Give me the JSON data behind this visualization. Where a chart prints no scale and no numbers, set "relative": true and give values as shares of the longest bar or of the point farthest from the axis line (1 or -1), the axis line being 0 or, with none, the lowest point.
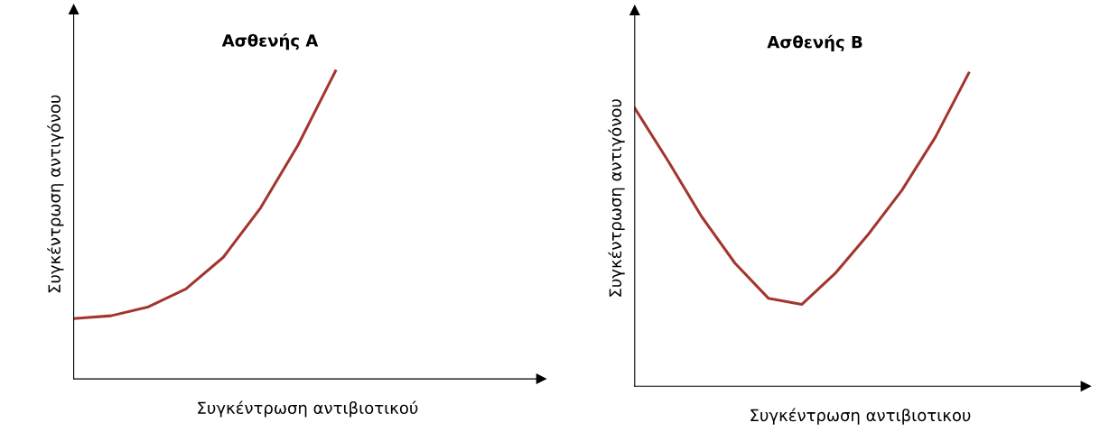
{
  "chart_data": [
    {
      "type": "line",
      "relative": true,
      "title": "Ασθενής Α",
      "xlabel": "Συγκέντρωση αντιβιοτικού",
      "ylabel": "Συγκέντρωση αντιγόνου",
      "grid": false,
      "legend": false,
      "marker": "none",
      "line_style": "solid",
      "categories": [
        null,
        null,
        null,
        null,
        null,
        null,
        null,
        null,
        null,
        null,
        null,
        null,
        null
      ],
      "series": [
        {
          "color": "#a3362e",
          "values": [
            0.196,
            0.205,
            0.234,
            0.292,
            0.395,
            0.556,
            0.76,
            1.0,
            null,
            null,
            null,
            null,
            null
          ]
        }
      ]
    },
    {
      "type": "line",
      "relative": true,
      "title": "Ασθενής Β",
      "xlabel": "Συγκέντρωση αντιβιοτικου",
      "ylabel": "Συγκέντρωση αντιγόνου",
      "grid": false,
      "legend": false,
      "marker": "none",
      "line_style": "solid",
      "categories": [
        null,
        null,
        null,
        null,
        null,
        null,
        null,
        null,
        null,
        null,
        null,
        null,
        null,
        null
      ],
      "series": [
        {
          "color": "#a3362e",
          "values": [
            0.888,
            0.719,
            0.542,
            0.393,
            0.281,
            0.261,
            0.36,
            0.486,
            0.626,
            0.795,
            1.0,
            null,
            null,
            null
          ]
        }
      ]
    }
  ]
}
